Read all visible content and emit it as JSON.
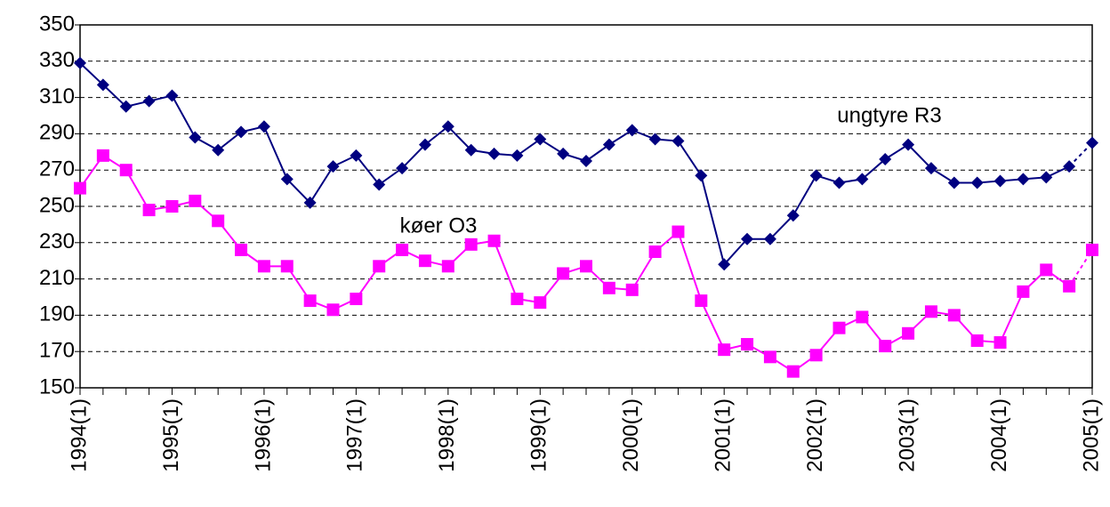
{
  "chart_data": {
    "type": "line",
    "categories": [
      "1994(1)",
      null,
      null,
      null,
      "1995(1)",
      null,
      null,
      null,
      "1996(1)",
      null,
      null,
      null,
      "1997(1)",
      null,
      null,
      null,
      "1998(1)",
      null,
      null,
      null,
      "1999(1)",
      null,
      null,
      null,
      "2000(1)",
      null,
      null,
      null,
      "2001(1)",
      null,
      null,
      null,
      "2002(1)",
      null,
      null,
      null,
      "2003(1)",
      null,
      null,
      null,
      "2004(1)",
      null,
      null,
      null,
      "2005(1)"
    ],
    "series": [
      {
        "name": "ungtyre R3",
        "color": "#000080",
        "marker": "diamond",
        "values": [
          329,
          317,
          305,
          308,
          311,
          288,
          281,
          291,
          294,
          265,
          252,
          272,
          278,
          262,
          271,
          284,
          294,
          281,
          279,
          278,
          287,
          279,
          275,
          284,
          292,
          287,
          286,
          267,
          218,
          232,
          232,
          245,
          267,
          263,
          265,
          276,
          284,
          271,
          263,
          263,
          264,
          265,
          266,
          272,
          285
        ]
      },
      {
        "name": "køer O3",
        "color": "#ff00ff",
        "marker": "square",
        "values": [
          260,
          278,
          270,
          248,
          250,
          253,
          242,
          226,
          217,
          217,
          198,
          193,
          199,
          217,
          226,
          220,
          217,
          229,
          231,
          199,
          197,
          213,
          217,
          205,
          204,
          225,
          236,
          198,
          171,
          174,
          167,
          159,
          168,
          183,
          189,
          173,
          180,
          192,
          190,
          176,
          175,
          203,
          215,
          206,
          226
        ]
      }
    ],
    "ylim": [
      150,
      350
    ],
    "yticks": [
      150,
      170,
      190,
      210,
      230,
      250,
      270,
      290,
      310,
      330,
      350
    ],
    "grid": true
  }
}
